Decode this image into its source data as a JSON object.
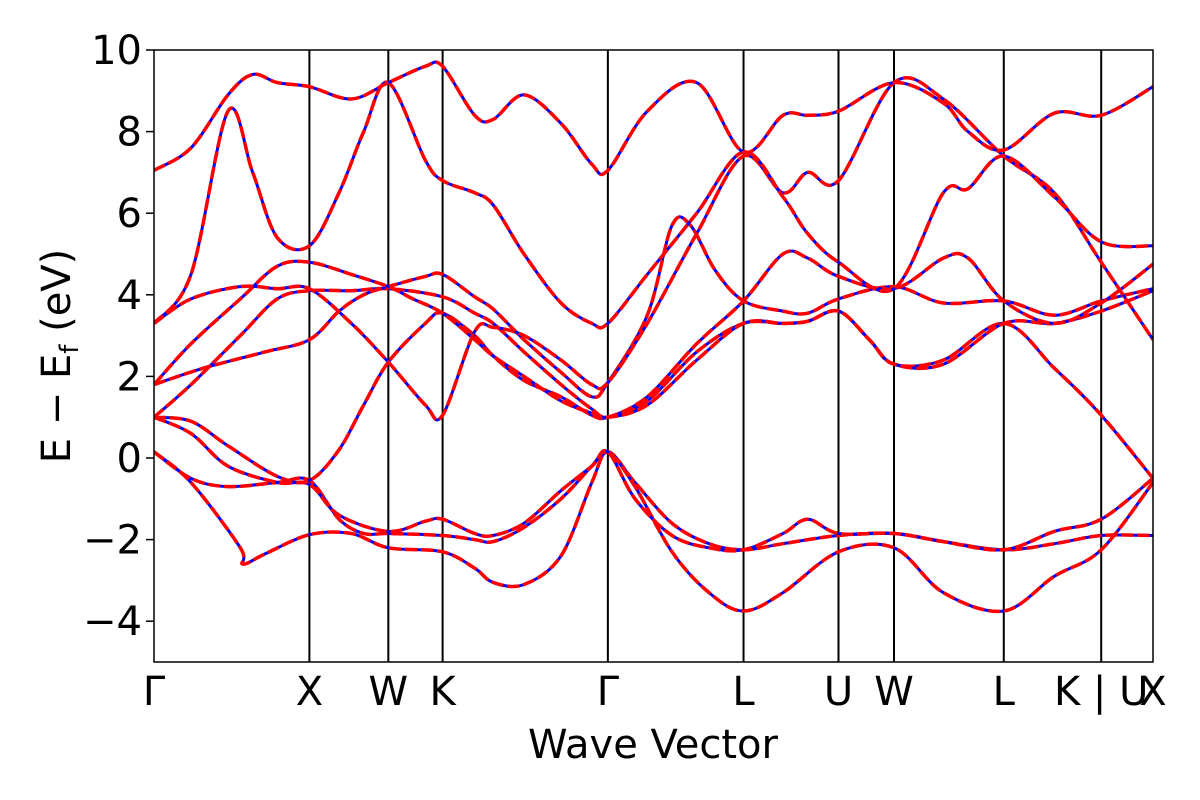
{
  "chart_data": {
    "type": "line",
    "xlabel": "Wave Vector",
    "ylabel_parts": {
      "e": "E",
      "minus": " − ",
      "ef": "E",
      "sub": "f",
      "unit": " (eV)"
    },
    "ylim": [
      -5,
      10
    ],
    "yticks": [
      -4,
      -2,
      0,
      2,
      4,
      6,
      8,
      10
    ],
    "ytick_labels": [
      "−4",
      "−2",
      "0",
      "2",
      "4",
      "6",
      "8",
      "10"
    ],
    "xlim": [
      0,
      8.1
    ],
    "kpoints": [
      {
        "label": "Γ",
        "x": 0.0
      },
      {
        "label": "X",
        "x": 1.26
      },
      {
        "label": "W",
        "x": 1.9
      },
      {
        "label": "K",
        "x": 2.34
      },
      {
        "label": "Γ",
        "x": 3.68
      },
      {
        "label": "L",
        "x": 4.78
      },
      {
        "label": "U",
        "x": 5.55
      },
      {
        "label": "W",
        "x": 6.0
      },
      {
        "label": "L",
        "x": 6.89
      },
      {
        "label": "K | U",
        "x": 7.68
      },
      {
        "label": "X",
        "x": 8.1
      }
    ],
    "series_style": [
      {
        "color": "#0000ff",
        "dashed": false,
        "width": 3
      },
      {
        "color": "#ff0000",
        "dashed": true,
        "width": 3.5
      }
    ],
    "bands": [
      [
        [
          0.0,
          0.15
        ],
        [
          0.3,
          -0.6
        ],
        [
          0.7,
          -2.2
        ],
        [
          0.72,
          -2.6
        ],
        [
          0.9,
          -2.35
        ],
        [
          1.26,
          -1.88
        ],
        [
          1.6,
          -1.85
        ],
        [
          1.9,
          -2.2
        ],
        [
          2.34,
          -2.3
        ],
        [
          2.6,
          -2.7
        ],
        [
          2.75,
          -3.05
        ],
        [
          3.0,
          -3.1
        ],
        [
          3.3,
          -2.4
        ],
        [
          3.55,
          -0.6
        ],
        [
          3.68,
          0.15
        ],
        [
          3.9,
          -0.6
        ],
        [
          4.2,
          -1.6
        ],
        [
          4.5,
          -2.1
        ],
        [
          4.78,
          -2.25
        ],
        [
          5.1,
          -2.1
        ],
        [
          5.55,
          -1.9
        ],
        [
          6.0,
          -1.85
        ],
        [
          6.4,
          -2.05
        ],
        [
          6.89,
          -2.25
        ],
        [
          7.3,
          -2.1
        ],
        [
          7.68,
          -1.9
        ],
        [
          8.1,
          -1.9
        ]
      ],
      [
        [
          0.0,
          0.15
        ],
        [
          0.3,
          -0.5
        ],
        [
          0.6,
          -0.7
        ],
        [
          1.0,
          -0.6
        ],
        [
          1.26,
          -0.55
        ],
        [
          1.5,
          -1.5
        ],
        [
          1.7,
          -1.85
        ],
        [
          1.9,
          -1.85
        ],
        [
          2.34,
          -1.9
        ],
        [
          2.6,
          -2.0
        ],
        [
          2.75,
          -2.05
        ],
        [
          3.0,
          -1.7
        ],
        [
          3.3,
          -1.0
        ],
        [
          3.55,
          -0.2
        ],
        [
          3.68,
          0.15
        ],
        [
          3.9,
          -0.7
        ],
        [
          4.2,
          -2.3
        ],
        [
          4.5,
          -3.3
        ],
        [
          4.78,
          -3.75
        ],
        [
          5.1,
          -3.3
        ],
        [
          5.55,
          -2.3
        ],
        [
          6.0,
          -2.2
        ],
        [
          6.4,
          -3.3
        ],
        [
          6.89,
          -3.75
        ],
        [
          7.3,
          -2.9
        ],
        [
          7.68,
          -2.25
        ],
        [
          8.1,
          -0.6
        ]
      ],
      [
        [
          0.0,
          1.0
        ],
        [
          0.3,
          0.6
        ],
        [
          0.6,
          -0.2
        ],
        [
          1.0,
          -0.6
        ],
        [
          1.26,
          -0.65
        ],
        [
          1.5,
          -1.4
        ],
        [
          1.9,
          -1.8
        ],
        [
          2.2,
          -1.55
        ],
        [
          2.34,
          -1.5
        ],
        [
          2.6,
          -1.85
        ],
        [
          2.75,
          -1.9
        ],
        [
          3.0,
          -1.6
        ],
        [
          3.3,
          -0.8
        ],
        [
          3.55,
          -0.2
        ],
        [
          3.68,
          0.15
        ],
        [
          3.9,
          -1.0
        ],
        [
          4.2,
          -1.9
        ],
        [
          4.5,
          -2.2
        ],
        [
          4.78,
          -2.25
        ],
        [
          5.1,
          -1.85
        ],
        [
          5.3,
          -1.5
        ],
        [
          5.55,
          -1.85
        ],
        [
          6.0,
          -1.85
        ],
        [
          6.4,
          -2.05
        ],
        [
          6.89,
          -2.25
        ],
        [
          7.3,
          -1.8
        ],
        [
          7.68,
          -1.5
        ],
        [
          8.1,
          -0.5
        ]
      ],
      [
        [
          0.0,
          1.0
        ],
        [
          0.3,
          0.9
        ],
        [
          0.6,
          0.3
        ],
        [
          1.0,
          -0.45
        ],
        [
          1.26,
          -0.55
        ],
        [
          1.5,
          0.2
        ],
        [
          1.7,
          1.3
        ],
        [
          1.9,
          2.35
        ],
        [
          2.2,
          3.3
        ],
        [
          2.34,
          3.55
        ],
        [
          2.6,
          3.0
        ],
        [
          2.75,
          2.5
        ],
        [
          3.0,
          1.9
        ],
        [
          3.3,
          1.5
        ],
        [
          3.55,
          1.05
        ],
        [
          3.68,
          1.0
        ],
        [
          4.0,
          1.4
        ],
        [
          4.4,
          2.6
        ],
        [
          4.78,
          3.3
        ],
        [
          5.1,
          3.3
        ],
        [
          5.3,
          3.35
        ],
        [
          5.55,
          3.6
        ],
        [
          5.8,
          2.9
        ],
        [
          6.0,
          2.3
        ],
        [
          6.4,
          2.4
        ],
        [
          6.89,
          3.3
        ],
        [
          7.3,
          2.2
        ],
        [
          7.68,
          1.05
        ],
        [
          8.1,
          -0.5
        ]
      ],
      [
        [
          0.0,
          1.0
        ],
        [
          0.3,
          1.8
        ],
        [
          0.7,
          3.0
        ],
        [
          1.0,
          3.9
        ],
        [
          1.26,
          4.1
        ],
        [
          1.6,
          4.1
        ],
        [
          1.9,
          4.15
        ],
        [
          2.34,
          3.95
        ],
        [
          2.6,
          3.55
        ],
        [
          2.75,
          3.3
        ],
        [
          3.0,
          2.6
        ],
        [
          3.3,
          1.8
        ],
        [
          3.55,
          1.2
        ],
        [
          3.68,
          1.0
        ],
        [
          4.0,
          1.3
        ],
        [
          4.4,
          2.4
        ],
        [
          4.78,
          3.3
        ],
        [
          5.1,
          3.3
        ],
        [
          5.3,
          3.35
        ],
        [
          5.55,
          3.6
        ],
        [
          5.8,
          2.9
        ],
        [
          6.0,
          2.3
        ],
        [
          6.4,
          2.3
        ],
        [
          6.89,
          3.3
        ],
        [
          7.3,
          3.3
        ],
        [
          7.68,
          3.6
        ],
        [
          8.1,
          4.1
        ]
      ],
      [
        [
          0.0,
          1.8
        ],
        [
          0.4,
          2.2
        ],
        [
          0.9,
          2.6
        ],
        [
          1.26,
          2.9
        ],
        [
          1.5,
          3.6
        ],
        [
          1.7,
          4.0
        ],
        [
          1.9,
          4.2
        ],
        [
          2.2,
          4.45
        ],
        [
          2.34,
          4.5
        ],
        [
          2.6,
          3.95
        ],
        [
          2.75,
          3.65
        ],
        [
          3.0,
          2.9
        ],
        [
          3.3,
          2.1
        ],
        [
          3.55,
          1.5
        ],
        [
          3.68,
          1.85
        ],
        [
          4.0,
          3.5
        ],
        [
          4.2,
          5.7
        ],
        [
          4.35,
          5.7
        ],
        [
          4.55,
          4.6
        ],
        [
          4.78,
          3.85
        ],
        [
          5.1,
          3.6
        ],
        [
          5.3,
          3.55
        ],
        [
          5.55,
          3.9
        ],
        [
          6.0,
          4.2
        ],
        [
          6.4,
          3.8
        ],
        [
          6.89,
          3.85
        ],
        [
          7.3,
          3.5
        ],
        [
          7.68,
          3.85
        ],
        [
          8.1,
          4.15
        ]
      ],
      [
        [
          0.0,
          1.8
        ],
        [
          0.3,
          2.8
        ],
        [
          0.7,
          3.9
        ],
        [
          1.0,
          4.7
        ],
        [
          1.26,
          4.8
        ],
        [
          1.6,
          4.5
        ],
        [
          1.9,
          4.2
        ],
        [
          2.1,
          3.9
        ],
        [
          2.34,
          3.55
        ],
        [
          2.6,
          2.9
        ],
        [
          2.75,
          2.5
        ],
        [
          3.0,
          2.0
        ],
        [
          3.3,
          1.4
        ],
        [
          3.55,
          1.1
        ],
        [
          3.68,
          1.0
        ],
        [
          4.0,
          1.5
        ],
        [
          4.4,
          2.8
        ],
        [
          4.78,
          3.85
        ],
        [
          5.1,
          5.0
        ],
        [
          5.3,
          4.9
        ],
        [
          5.55,
          4.45
        ],
        [
          6.0,
          4.15
        ],
        [
          6.4,
          4.9
        ],
        [
          6.6,
          4.9
        ],
        [
          6.89,
          3.85
        ],
        [
          7.3,
          3.3
        ],
        [
          7.68,
          3.8
        ],
        [
          8.1,
          4.75
        ]
      ],
      [
        [
          0.0,
          3.3
        ],
        [
          0.3,
          3.9
        ],
        [
          0.7,
          4.2
        ],
        [
          1.0,
          4.15
        ],
        [
          1.26,
          4.15
        ],
        [
          1.6,
          3.3
        ],
        [
          1.9,
          2.35
        ],
        [
          2.2,
          1.3
        ],
        [
          2.34,
          1.05
        ],
        [
          2.6,
          3.1
        ],
        [
          2.75,
          3.2
        ],
        [
          3.0,
          3.0
        ],
        [
          3.3,
          2.4
        ],
        [
          3.55,
          1.8
        ],
        [
          3.68,
          1.85
        ],
        [
          4.0,
          3.3
        ],
        [
          4.4,
          5.5
        ],
        [
          4.78,
          7.4
        ],
        [
          5.1,
          6.5
        ],
        [
          5.3,
          7.0
        ],
        [
          5.55,
          6.8
        ],
        [
          6.0,
          9.2
        ],
        [
          6.4,
          8.8
        ],
        [
          6.89,
          7.4
        ],
        [
          7.3,
          6.5
        ],
        [
          7.68,
          4.8
        ],
        [
          8.1,
          2.9
        ]
      ],
      [
        [
          0.0,
          3.3
        ],
        [
          0.3,
          4.5
        ],
        [
          0.6,
          8.5
        ],
        [
          0.8,
          7.0
        ],
        [
          1.0,
          5.4
        ],
        [
          1.26,
          5.2
        ],
        [
          1.5,
          6.5
        ],
        [
          1.7,
          8.0
        ],
        [
          1.9,
          9.2
        ],
        [
          2.2,
          7.3
        ],
        [
          2.34,
          6.8
        ],
        [
          2.6,
          6.5
        ],
        [
          2.75,
          6.2
        ],
        [
          3.0,
          5.0
        ],
        [
          3.3,
          3.8
        ],
        [
          3.55,
          3.3
        ],
        [
          3.68,
          3.3
        ],
        [
          4.0,
          4.5
        ],
        [
          4.4,
          6.0
        ],
        [
          4.78,
          7.5
        ],
        [
          5.1,
          6.4
        ],
        [
          5.3,
          5.5
        ],
        [
          5.55,
          4.8
        ],
        [
          6.0,
          4.15
        ],
        [
          6.4,
          6.5
        ],
        [
          6.6,
          6.6
        ],
        [
          6.89,
          7.4
        ],
        [
          7.3,
          6.4
        ],
        [
          7.68,
          5.3
        ],
        [
          8.1,
          5.2
        ]
      ],
      [
        [
          0.0,
          7.05
        ],
        [
          0.3,
          7.6
        ],
        [
          0.6,
          8.9
        ],
        [
          0.8,
          9.4
        ],
        [
          1.0,
          9.2
        ],
        [
          1.26,
          9.1
        ],
        [
          1.6,
          8.8
        ],
        [
          1.9,
          9.2
        ],
        [
          2.2,
          9.6
        ],
        [
          2.34,
          9.6
        ],
        [
          2.6,
          8.4
        ],
        [
          2.75,
          8.3
        ],
        [
          3.0,
          8.9
        ],
        [
          3.3,
          8.2
        ],
        [
          3.55,
          7.2
        ],
        [
          3.68,
          7.05
        ],
        [
          4.0,
          8.5
        ],
        [
          4.4,
          9.2
        ],
        [
          4.78,
          7.5
        ],
        [
          5.1,
          8.4
        ],
        [
          5.3,
          8.4
        ],
        [
          5.55,
          8.5
        ],
        [
          6.0,
          9.2
        ],
        [
          6.4,
          8.7
        ],
        [
          6.6,
          8.0
        ],
        [
          6.89,
          7.55
        ],
        [
          7.3,
          8.45
        ],
        [
          7.68,
          8.4
        ],
        [
          8.1,
          9.1
        ]
      ]
    ]
  }
}
